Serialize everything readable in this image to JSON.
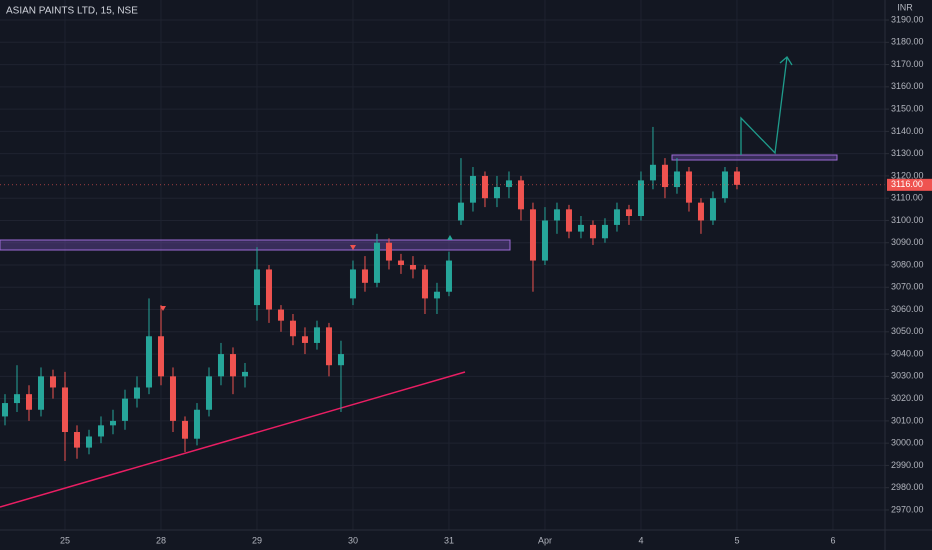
{
  "chart_data": {
    "type": "candlestick",
    "title": "ASIAN PAINTS LTD, 15, NSE",
    "currency": "INR",
    "up_color": "#26a69a",
    "down_color": "#ef5350",
    "grid": true,
    "last_price": {
      "value": 3116,
      "label": "3116.00"
    },
    "xlim": [
      -0.677,
      8.542
    ],
    "xticks": [
      {
        "value": 0,
        "label": "25"
      },
      {
        "value": 1,
        "label": "28"
      },
      {
        "value": 2,
        "label": "29"
      },
      {
        "value": 3,
        "label": "30"
      },
      {
        "value": 4,
        "label": "31"
      },
      {
        "value": 5,
        "label": "Apr"
      },
      {
        "value": 6,
        "label": "4"
      },
      {
        "value": 7,
        "label": "5"
      },
      {
        "value": 8,
        "label": "6"
      }
    ],
    "ylim": [
      2961,
      3199
    ],
    "yticks": [
      {
        "value": 2970,
        "label": "2970.00"
      },
      {
        "value": 2980,
        "label": "2980.00"
      },
      {
        "value": 2990,
        "label": "2990.00"
      },
      {
        "value": 3000,
        "label": "3000.00"
      },
      {
        "value": 3010,
        "label": "3010.00"
      },
      {
        "value": 3020,
        "label": "3020.00"
      },
      {
        "value": 3030,
        "label": "3030.00"
      },
      {
        "value": 3040,
        "label": "3040.00"
      },
      {
        "value": 3050,
        "label": "3050.00"
      },
      {
        "value": 3060,
        "label": "3060.00"
      },
      {
        "value": 3070,
        "label": "3070.00"
      },
      {
        "value": 3080,
        "label": "3080.00"
      },
      {
        "value": 3090,
        "label": "3090.00"
      },
      {
        "value": 3100,
        "label": "3100.00"
      },
      {
        "value": 3110,
        "label": "3110.00"
      },
      {
        "value": 3120,
        "label": "3120.00"
      },
      {
        "value": 3130,
        "label": "3130.00"
      },
      {
        "value": 3140,
        "label": "3140.00"
      },
      {
        "value": 3150,
        "label": "3150.00"
      },
      {
        "value": 3160,
        "label": "3160.00"
      },
      {
        "value": 3170,
        "label": "3170.00"
      },
      {
        "value": 3180,
        "label": "3180.00"
      },
      {
        "value": 3190,
        "label": "3190.00"
      }
    ],
    "x": [
      -0.625,
      -0.5,
      -0.375,
      -0.25,
      -0.125,
      0,
      0.125,
      0.25,
      0.375,
      0.5,
      0.625,
      0.75,
      0.875,
      1.0,
      1.125,
      1.25,
      1.375,
      1.5,
      1.625,
      1.75,
      1.875,
      2.0,
      2.125,
      2.25,
      2.375,
      2.5,
      2.625,
      2.75,
      2.875,
      3.0,
      3.125,
      3.25,
      3.375,
      3.5,
      3.625,
      3.75,
      3.875,
      4.0,
      4.125,
      4.25,
      4.375,
      4.5,
      4.625,
      4.75,
      4.875,
      5.0,
      5.125,
      5.25,
      5.375,
      5.5,
      5.625,
      5.75,
      5.875,
      6.0,
      6.125,
      6.25,
      6.375,
      6.5,
      6.625,
      6.75,
      6.875,
      7.0
    ],
    "open": [
      3012,
      3018,
      3022,
      3015,
      3030,
      3025,
      3005,
      2998,
      3003,
      3008,
      3010,
      3020,
      3025,
      3048,
      3030,
      3010,
      3002,
      3015,
      3030,
      3040,
      3030,
      3062,
      3078,
      3060,
      3055,
      3048,
      3045,
      3052,
      3035,
      3065,
      3078,
      3072,
      3090,
      3082,
      3080,
      3078,
      3065,
      3068,
      3100,
      3108,
      3120,
      3110,
      3115,
      3118,
      3105,
      3082,
      3100,
      3105,
      3095,
      3098,
      3092,
      3098,
      3105,
      3102,
      3118,
      3125,
      3115,
      3122,
      3108,
      3100,
      3110,
      3122
    ],
    "high": [
      3022,
      3035,
      3026,
      3034,
      3033,
      3032,
      3008,
      3006,
      3012,
      3015,
      3024,
      3030,
      3065,
      3062,
      3034,
      3012,
      3018,
      3034,
      3045,
      3043,
      3036,
      3088,
      3080,
      3062,
      3058,
      3052,
      3055,
      3054,
      3046,
      3082,
      3084,
      3094,
      3092,
      3085,
      3084,
      3080,
      3072,
      3086,
      3128,
      3124,
      3122,
      3120,
      3122,
      3120,
      3108,
      3106,
      3108,
      3107,
      3102,
      3100,
      3101,
      3108,
      3107,
      3122,
      3142,
      3128,
      3128,
      3124,
      3110,
      3113,
      3124,
      3124
    ],
    "low": [
      3008,
      3014,
      3010,
      3012,
      3020,
      2992,
      2993,
      2995,
      3000,
      3004,
      3006,
      3016,
      3022,
      3026,
      3005,
      2996,
      2999,
      3012,
      3026,
      3022,
      3025,
      3055,
      3054,
      3050,
      3044,
      3040,
      3042,
      3030,
      3014,
      3062,
      3068,
      3070,
      3078,
      3076,
      3074,
      3058,
      3058,
      3066,
      3098,
      3104,
      3106,
      3106,
      3110,
      3100,
      3068,
      3080,
      3094,
      3092,
      3092,
      3089,
      3090,
      3095,
      3098,
      3100,
      3114,
      3110,
      3112,
      3104,
      3094,
      3098,
      3108,
      3114
    ],
    "close": [
      3018,
      3022,
      3015,
      3030,
      3025,
      3005,
      2998,
      3003,
      3008,
      3010,
      3020,
      3025,
      3048,
      3030,
      3010,
      3002,
      3015,
      3030,
      3040,
      3030,
      3032,
      3078,
      3060,
      3055,
      3048,
      3045,
      3052,
      3035,
      3040,
      3078,
      3072,
      3090,
      3082,
      3080,
      3078,
      3065,
      3068,
      3082,
      3108,
      3120,
      3110,
      3115,
      3118,
      3105,
      3082,
      3100,
      3105,
      3095,
      3098,
      3092,
      3098,
      3105,
      3102,
      3118,
      3125,
      3115,
      3122,
      3108,
      3100,
      3110,
      3122,
      3116
    ]
  }
}
